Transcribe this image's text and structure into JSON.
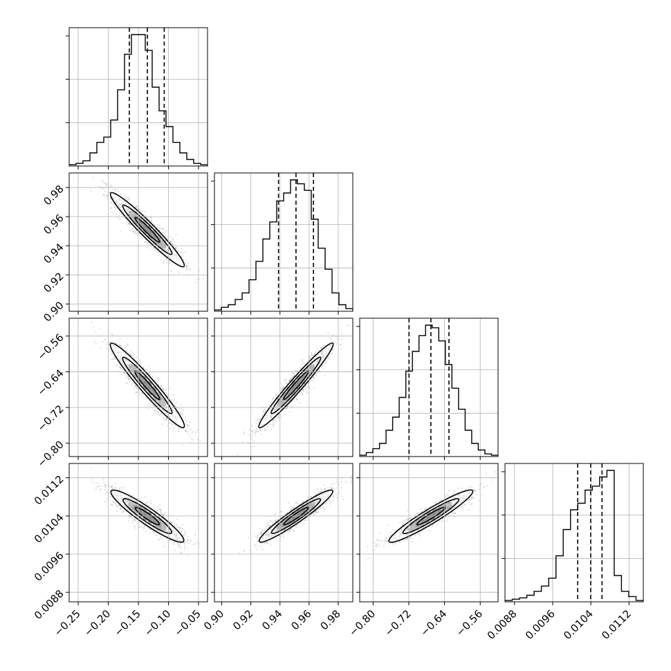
{
  "chart_data": {
    "type": "corner",
    "grid": true,
    "parameters": [
      {
        "ticks": [
          "−0.25",
          "−0.20",
          "−0.15",
          "−0.10",
          "−0.05"
        ],
        "tick_values": [
          -0.25,
          -0.2,
          -0.15,
          -0.1,
          -0.05
        ],
        "range": [
          -0.265,
          -0.035
        ],
        "median": -0.135,
        "q16": -0.165,
        "q84": -0.107,
        "hist": [
          1,
          2,
          4,
          10,
          18,
          22,
          35,
          58,
          85,
          100,
          100,
          88,
          60,
          42,
          30,
          18,
          10,
          5,
          2,
          1
        ]
      },
      {
        "ticks": [
          "0.90",
          "0.92",
          "0.94",
          "0.96",
          "0.98"
        ],
        "tick_values": [
          0.9,
          0.92,
          0.94,
          0.96,
          0.98
        ],
        "range": [
          0.895,
          0.99
        ],
        "median": 0.951,
        "q16": 0.939,
        "q84": 0.963,
        "hist": [
          1,
          3,
          5,
          9,
          14,
          24,
          38,
          55,
          68,
          84,
          90,
          100,
          97,
          92,
          70,
          48,
          32,
          14,
          5,
          2
        ]
      },
      {
        "ticks": [
          "−0.80",
          "−0.72",
          "−0.64",
          "−0.56"
        ],
        "tick_values": [
          -0.8,
          -0.72,
          -0.64,
          -0.56
        ],
        "range": [
          -0.83,
          -0.52
        ],
        "median": -0.6705,
        "q16": -0.7195,
        "q84": -0.63,
        "hist": [
          1,
          3,
          6,
          10,
          20,
          30,
          45,
          65,
          80,
          92,
          100,
          98,
          88,
          70,
          52,
          36,
          20,
          10,
          5,
          2,
          1
        ]
      },
      {
        "ticks": [
          "0.0088",
          "0.0096",
          "0.0104",
          "0.0112"
        ],
        "tick_values": [
          0.0088,
          0.0096,
          0.0104,
          0.0112
        ],
        "range": [
          0.0086,
          0.0115
        ],
        "median": 0.010397,
        "q16": 0.010124,
        "q84": 0.010634,
        "hist": [
          1,
          2,
          3,
          5,
          8,
          12,
          18,
          35,
          55,
          70,
          75,
          85,
          88,
          95,
          100,
          20,
          8,
          4,
          1
        ]
      }
    ],
    "correlations": [
      {
        "row": 1,
        "col": 0,
        "r": -0.93
      },
      {
        "row": 2,
        "col": 0,
        "r": -0.93
      },
      {
        "row": 2,
        "col": 1,
        "r": 0.95
      },
      {
        "row": 3,
        "col": 0,
        "r": -0.88
      },
      {
        "row": 3,
        "col": 1,
        "r": 0.92
      },
      {
        "row": 3,
        "col": 2,
        "r": 0.92
      }
    ]
  }
}
